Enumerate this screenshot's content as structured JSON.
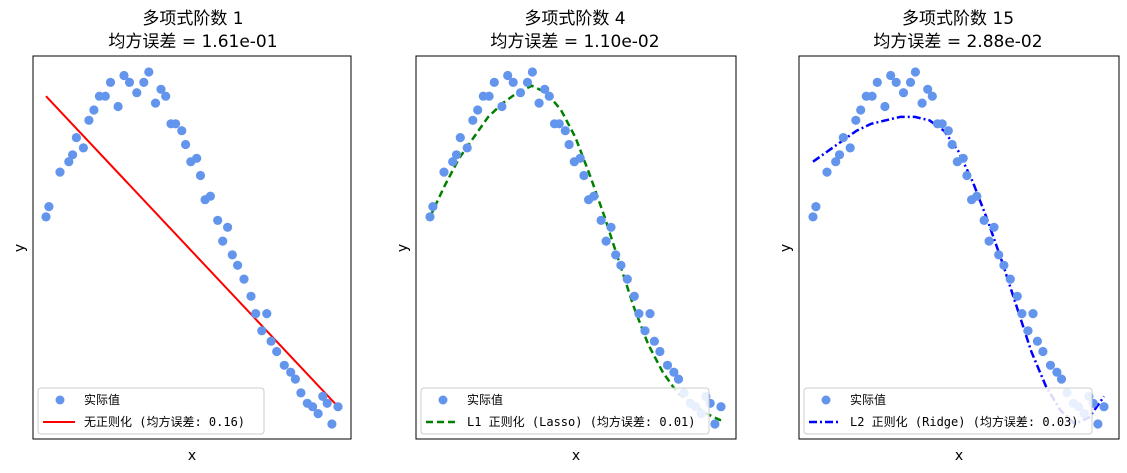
{
  "colors": {
    "points": "#6495ed",
    "none": "#ff0000",
    "l1": "#008000",
    "l2": "#0000ff",
    "frame": "#000000"
  },
  "chart_data": [
    {
      "type": "scatter",
      "title": "多项式阶数 1",
      "subtitle": "均方误差 = 1.61e-01",
      "xlabel": "x",
      "ylabel": "y",
      "grid": false,
      "legend_position": "lower-left",
      "legend": {
        "points_label": "实际值",
        "line_label": "无正则化 (均方误差: 0.16)"
      },
      "fit": {
        "style": "solid",
        "color": "#ff0000",
        "x": [
          0.0,
          1.0
        ],
        "y": [
          0.92,
          0.02
        ]
      }
    },
    {
      "type": "scatter",
      "title": "多项式阶数 4",
      "subtitle": "均方误差 = 1.10e-02",
      "xlabel": "x",
      "ylabel": "y",
      "grid": false,
      "legend_position": "lower-left",
      "legend": {
        "points_label": "实际值",
        "line_label": "L1 正则化 (Lasso) (均方误差: 0.01)"
      },
      "fit": {
        "style": "dashed",
        "color": "#008000",
        "x": [
          0.0,
          0.05,
          0.1,
          0.15,
          0.2,
          0.25,
          0.3,
          0.35,
          0.4,
          0.45,
          0.5,
          0.55,
          0.6,
          0.65,
          0.7,
          0.75,
          0.8,
          0.85,
          0.9,
          0.95,
          1.0
        ],
        "y": [
          0.57,
          0.66,
          0.74,
          0.8,
          0.86,
          0.9,
          0.93,
          0.95,
          0.93,
          0.88,
          0.8,
          0.69,
          0.57,
          0.44,
          0.31,
          0.2,
          0.12,
          0.06,
          0.03,
          0.0,
          -0.02
        ]
      }
    },
    {
      "type": "scatter",
      "title": "多项式阶数 15",
      "subtitle": "均方误差 = 2.88e-02",
      "xlabel": "x",
      "ylabel": "y",
      "grid": false,
      "legend_position": "lower-left",
      "legend": {
        "points_label": "实际值",
        "line_label": "L2 正则化 (Ridge) (均方误差: 0.03)"
      },
      "fit": {
        "style": "dashdot",
        "color": "#0000ff",
        "x": [
          0.0,
          0.05,
          0.1,
          0.15,
          0.2,
          0.25,
          0.3,
          0.35,
          0.4,
          0.45,
          0.5,
          0.55,
          0.6,
          0.65,
          0.7,
          0.75,
          0.8,
          0.85,
          0.9,
          0.95,
          1.0
        ],
        "y": [
          0.73,
          0.76,
          0.79,
          0.82,
          0.84,
          0.85,
          0.86,
          0.86,
          0.85,
          0.82,
          0.76,
          0.67,
          0.56,
          0.44,
          0.31,
          0.18,
          0.08,
          0.01,
          -0.03,
          -0.01,
          0.05
        ]
      }
    }
  ],
  "scatter_points": {
    "x": [
      0.0,
      0.01,
      0.048,
      0.078,
      0.091,
      0.104,
      0.128,
      0.147,
      0.164,
      0.183,
      0.203,
      0.221,
      0.247,
      0.267,
      0.286,
      0.311,
      0.335,
      0.352,
      0.375,
      0.394,
      0.41,
      0.428,
      0.444,
      0.465,
      0.478,
      0.496,
      0.516,
      0.529,
      0.545,
      0.563,
      0.588,
      0.605,
      0.622,
      0.638,
      0.656,
      0.678,
      0.702,
      0.718,
      0.739,
      0.756,
      0.771,
      0.79,
      0.816,
      0.838,
      0.854,
      0.873,
      0.895,
      0.913,
      0.932,
      0.948,
      0.963,
      0.979,
      1.0
    ],
    "y": [
      0.57,
      0.6,
      0.7,
      0.73,
      0.75,
      0.8,
      0.77,
      0.85,
      0.88,
      0.92,
      0.92,
      0.96,
      0.89,
      0.98,
      0.96,
      0.93,
      0.96,
      0.99,
      0.9,
      0.94,
      0.92,
      0.84,
      0.84,
      0.82,
      0.78,
      0.73,
      0.74,
      0.69,
      0.62,
      0.63,
      0.56,
      0.5,
      0.54,
      0.46,
      0.43,
      0.39,
      0.34,
      0.29,
      0.24,
      0.29,
      0.21,
      0.18,
      0.14,
      0.12,
      0.1,
      0.06,
      0.03,
      0.02,
      0.0,
      0.05,
      0.03,
      -0.03,
      0.02
    ]
  }
}
